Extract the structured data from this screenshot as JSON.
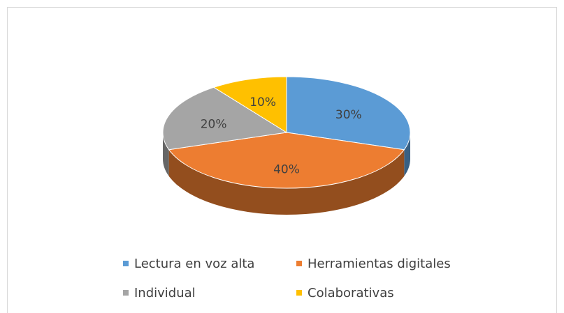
{
  "chart_data": {
    "type": "pie",
    "categories": [
      "Lectura en voz alta",
      "Herramientas digitales",
      "Individual",
      "Colaborativas"
    ],
    "values": [
      30,
      40,
      20,
      10
    ],
    "value_labels": [
      "30%",
      "40%",
      "20%",
      "10%"
    ],
    "colors": [
      "#5b9bd5",
      "#ed7d31",
      "#a5a5a5",
      "#ffc000"
    ],
    "legend": "bottom"
  }
}
